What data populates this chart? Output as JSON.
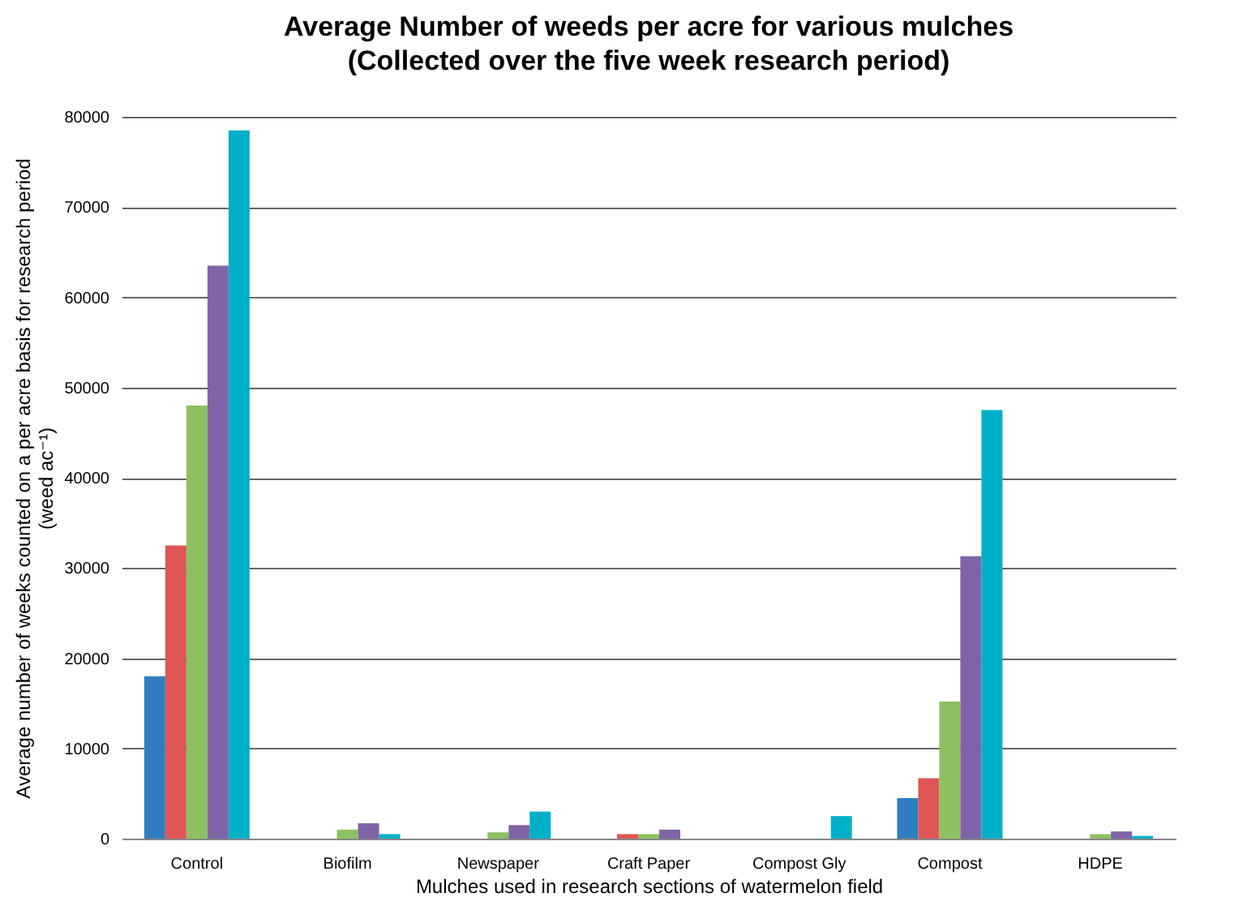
{
  "chart_data": {
    "type": "bar",
    "title": "Average Number of weeds per acre for various mulches",
    "subtitle": "(Collected over the five week research period)",
    "xlabel": "Mulches used in research sections of watermelon field",
    "ylabel": "Average number of weeks counted on a per acre basis for research period\n(weed ac⁻¹)",
    "categories": [
      "Control",
      "Biofilm",
      "Newspaper",
      "Craft Paper",
      "Compost Gly",
      "Compost",
      "HDPE"
    ],
    "series": [
      {
        "color": "#2e7fc1",
        "values": [
          18000,
          0,
          0,
          0,
          0,
          4500,
          0
        ]
      },
      {
        "color": "#e05555",
        "values": [
          32500,
          0,
          0,
          500,
          0,
          6700,
          0
        ]
      },
      {
        "color": "#8cc060",
        "values": [
          48000,
          1000,
          700,
          500,
          0,
          15200,
          500
        ]
      },
      {
        "color": "#8064a8",
        "values": [
          63500,
          1700,
          1500,
          1000,
          0,
          31300,
          800
        ]
      },
      {
        "color": "#00b0c8",
        "values": [
          78500,
          500,
          3000,
          0,
          2500,
          47500,
          300
        ]
      }
    ],
    "ylim": [
      0,
      80000
    ],
    "yticks": [
      0,
      10000,
      20000,
      30000,
      40000,
      50000,
      60000,
      70000,
      80000
    ],
    "grid": "y",
    "legend": false
  }
}
